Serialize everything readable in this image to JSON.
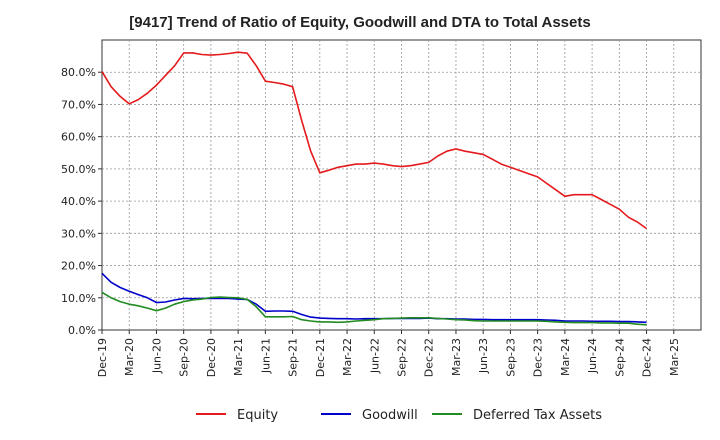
{
  "chart_data": {
    "type": "line",
    "title": "[9417]  Trend of Ratio of Equity, Goodwill and DTA to Total Assets",
    "xlabel": "",
    "ylabel": "",
    "ylim": [
      0,
      90
    ],
    "yticks": [
      0,
      10,
      20,
      30,
      40,
      50,
      60,
      70,
      80
    ],
    "ytick_labels": [
      "0.0%",
      "10.0%",
      "20.0%",
      "30.0%",
      "40.0%",
      "50.0%",
      "60.0%",
      "70.0%",
      "80.0%"
    ],
    "xlim": [
      0,
      66
    ],
    "xtick_labels": [
      "Dec-19",
      "Mar-20",
      "Jun-20",
      "Sep-20",
      "Dec-20",
      "Mar-21",
      "Jun-21",
      "Sep-21",
      "Dec-21",
      "Mar-22",
      "Jun-22",
      "Sep-22",
      "Dec-22",
      "Mar-23",
      "Jun-23",
      "Sep-23",
      "Dec-23",
      "Mar-24",
      "Jun-24",
      "Sep-24",
      "Dec-24",
      "Mar-25"
    ],
    "x": [
      0,
      1,
      2,
      3,
      4,
      5,
      6,
      7,
      8,
      9,
      10,
      11,
      12,
      13,
      14,
      15,
      16,
      17,
      18,
      19,
      20,
      21,
      22,
      23,
      24,
      25,
      26,
      27,
      28,
      29,
      30,
      31,
      32,
      33,
      34,
      35,
      36,
      37,
      38,
      39,
      40,
      41,
      42,
      43,
      44,
      45,
      46,
      47,
      48,
      49,
      50,
      51,
      52,
      53,
      54,
      55,
      56,
      57,
      58,
      59,
      60
    ],
    "grid": true,
    "legend_position": "bottom",
    "series": [
      {
        "name": "Equity",
        "color": "#e41a1c",
        "values": [
          80.2,
          75.5,
          72.5,
          70.2,
          71.5,
          73.5,
          76.0,
          79.0,
          82.0,
          86.0,
          86.0,
          85.5,
          85.3,
          85.5,
          85.8,
          86.2,
          85.9,
          82.0,
          77.2,
          76.8,
          76.3,
          75.5,
          65.0,
          55.5,
          48.8,
          49.6,
          50.5,
          51.0,
          51.5,
          51.5,
          51.8,
          51.5,
          51.0,
          50.7,
          51.0,
          51.5,
          52.0,
          54.0,
          55.5,
          56.2,
          55.5,
          55.0,
          54.5,
          53.0,
          51.5,
          50.5,
          49.5,
          48.5,
          47.5,
          45.5,
          43.5,
          41.5,
          42.0,
          42.0,
          42.0,
          40.5,
          39.0,
          37.5,
          35.0,
          33.5,
          31.5
        ]
      },
      {
        "name": "Goodwill",
        "color": "#0000cc",
        "values": [
          17.6,
          14.8,
          13.2,
          12.0,
          11.0,
          10.0,
          8.5,
          8.7,
          9.3,
          9.8,
          9.7,
          9.8,
          9.8,
          9.8,
          9.8,
          9.6,
          9.5,
          8.0,
          5.8,
          5.9,
          5.9,
          5.8,
          4.8,
          4.0,
          3.7,
          3.6,
          3.5,
          3.5,
          3.4,
          3.5,
          3.5,
          3.5,
          3.6,
          3.6,
          3.6,
          3.6,
          3.7,
          3.5,
          3.5,
          3.4,
          3.4,
          3.3,
          3.3,
          3.2,
          3.2,
          3.2,
          3.2,
          3.2,
          3.2,
          3.1,
          3.0,
          2.8,
          2.8,
          2.8,
          2.7,
          2.7,
          2.7,
          2.6,
          2.6,
          2.5,
          2.4
        ]
      },
      {
        "name": "Deferred Tax Assets",
        "color": "#228b22",
        "values": [
          11.7,
          10.0,
          8.8,
          8.0,
          7.5,
          6.8,
          6.0,
          6.8,
          8.0,
          8.8,
          9.3,
          9.6,
          10.1,
          10.2,
          10.1,
          10.0,
          9.5,
          7.2,
          4.1,
          4.1,
          4.1,
          4.2,
          3.2,
          2.8,
          2.5,
          2.5,
          2.4,
          2.5,
          2.8,
          3.0,
          3.2,
          3.5,
          3.6,
          3.7,
          3.8,
          3.8,
          3.8,
          3.6,
          3.4,
          3.2,
          3.1,
          2.9,
          2.8,
          2.8,
          2.8,
          2.8,
          2.8,
          2.8,
          2.8,
          2.7,
          2.5,
          2.4,
          2.3,
          2.3,
          2.3,
          2.2,
          2.2,
          2.1,
          2.1,
          1.8,
          1.6
        ]
      }
    ]
  }
}
